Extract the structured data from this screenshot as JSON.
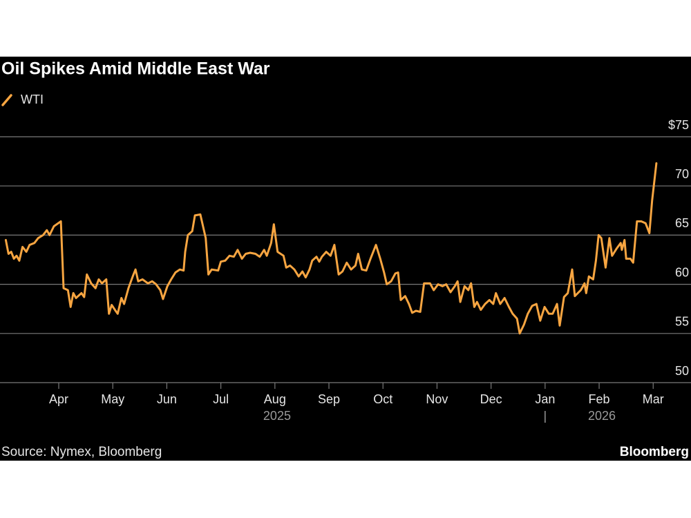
{
  "chart_data": {
    "type": "line",
    "title": "Oil Spikes Amid Middle East War",
    "source": "Source: Nymex, Bloomberg",
    "brand": "Bloomberg",
    "xlim": [
      2.913,
      15.7
    ],
    "ylim": [
      50,
      75
    ],
    "yticks": [
      50,
      55,
      60,
      65,
      70,
      {
        "value": 75,
        "label": "$75"
      }
    ],
    "xticks": [
      {
        "value": 4,
        "label": "Apr"
      },
      {
        "value": 5,
        "label": "May"
      },
      {
        "value": 6,
        "label": "Jun"
      },
      {
        "value": 7,
        "label": "Jul"
      },
      {
        "value": 8,
        "label": "Aug"
      },
      {
        "value": 9,
        "label": "Sep"
      },
      {
        "value": 10,
        "label": "Oct"
      },
      {
        "value": 11,
        "label": "Nov"
      },
      {
        "value": 12,
        "label": "Dec"
      },
      {
        "value": 13,
        "label": "Jan"
      },
      {
        "value": 14,
        "label": "Feb"
      },
      {
        "value": 15,
        "label": "Mar"
      }
    ],
    "year_labels": [
      {
        "value": 8.04,
        "label": "2025"
      },
      {
        "value": 14.05,
        "label": "2026"
      }
    ],
    "year_separator": 13,
    "grid": true,
    "x": [
      3.02,
      3.07,
      3.12,
      3.17,
      3.22,
      3.27,
      3.33,
      3.4,
      3.46,
      3.55,
      3.62,
      3.71,
      3.78,
      3.83,
      3.91,
      4.04,
      4.09,
      4.17,
      4.22,
      4.27,
      4.32,
      4.42,
      4.47,
      4.52,
      4.6,
      4.68,
      4.74,
      4.8,
      4.88,
      4.93,
      4.98,
      5.04,
      5.09,
      5.16,
      5.21,
      5.29,
      5.37,
      5.42,
      5.47,
      5.55,
      5.65,
      5.73,
      5.8,
      5.88,
      5.93,
      6.01,
      6.08,
      6.16,
      6.24,
      6.31,
      6.34,
      6.39,
      6.47,
      6.52,
      6.62,
      6.72,
      6.77,
      6.83,
      6.95,
      7.0,
      7.08,
      7.16,
      7.24,
      7.31,
      7.39,
      7.46,
      7.54,
      7.64,
      7.72,
      7.8,
      7.85,
      7.93,
      7.98,
      8.05,
      8.16,
      8.21,
      8.28,
      8.36,
      8.44,
      8.51,
      8.57,
      8.64,
      8.69,
      8.77,
      8.82,
      8.87,
      8.95,
      9.03,
      9.1,
      9.18,
      9.25,
      9.33,
      9.41,
      9.49,
      9.54,
      9.61,
      9.69,
      9.77,
      9.87,
      9.95,
      10.02,
      10.07,
      10.15,
      10.23,
      10.28,
      10.33,
      10.41,
      10.48,
      10.54,
      10.61,
      10.69,
      10.76,
      10.87,
      10.94,
      11.02,
      11.1,
      11.17,
      11.25,
      11.33,
      11.38,
      11.43,
      11.51,
      11.58,
      11.63,
      11.69,
      11.74,
      11.81,
      11.89,
      11.97,
      12.04,
      12.09,
      12.17,
      12.25,
      12.33,
      12.4,
      12.48,
      12.53,
      12.61,
      12.68,
      12.76,
      12.84,
      12.91,
      12.99,
      13.07,
      13.14,
      13.22,
      13.27,
      13.35,
      13.42,
      13.5,
      13.55,
      13.66,
      13.73,
      13.76,
      13.81,
      13.89,
      13.94,
      13.99,
      14.04,
      14.12,
      14.19,
      14.24,
      14.32,
      14.4,
      14.42,
      14.47,
      14.5,
      14.58,
      14.63,
      14.7,
      14.78,
      14.86,
      14.93,
      14.98,
      15.06
    ],
    "series": [
      {
        "name": "WTI",
        "color": "#f7a541",
        "values": [
          64.5,
          63.1,
          63.3,
          62.6,
          62.9,
          62.4,
          63.8,
          63.3,
          64.0,
          64.2,
          64.7,
          65.0,
          65.5,
          65.0,
          65.9,
          66.4,
          59.6,
          59.4,
          57.7,
          59.1,
          58.6,
          59.1,
          58.7,
          61.0,
          60.1,
          59.6,
          60.5,
          60.1,
          60.5,
          57.0,
          57.9,
          57.4,
          57.0,
          58.6,
          58.0,
          59.6,
          60.8,
          61.5,
          60.3,
          60.5,
          60.1,
          60.3,
          60.0,
          59.4,
          58.5,
          59.8,
          60.5,
          61.2,
          61.5,
          61.4,
          63.3,
          65.0,
          65.4,
          67.0,
          67.1,
          64.7,
          61.0,
          61.5,
          61.4,
          62.3,
          62.4,
          62.9,
          62.8,
          63.5,
          62.6,
          63.1,
          63.2,
          63.1,
          62.8,
          63.5,
          62.9,
          64.2,
          66.1,
          63.3,
          62.9,
          61.7,
          61.9,
          61.5,
          60.8,
          61.3,
          60.7,
          61.5,
          62.4,
          62.8,
          62.3,
          62.8,
          63.3,
          62.9,
          64.0,
          61.0,
          61.3,
          62.2,
          61.5,
          61.9,
          63.1,
          61.5,
          61.4,
          62.6,
          64.0,
          62.6,
          61.2,
          60.0,
          60.3,
          61.1,
          61.2,
          58.4,
          58.8,
          58.0,
          57.1,
          57.3,
          57.2,
          60.1,
          60.1,
          59.4,
          60.0,
          59.8,
          60.0,
          59.2,
          59.8,
          60.3,
          58.2,
          59.8,
          59.4,
          60.1,
          57.7,
          58.2,
          57.4,
          58.0,
          58.4,
          58.0,
          59.1,
          58.0,
          58.6,
          57.7,
          57.0,
          56.5,
          55.0,
          55.9,
          57.0,
          57.8,
          58.0,
          56.3,
          57.7,
          57.0,
          57.0,
          58.0,
          55.8,
          58.7,
          59.1,
          61.5,
          58.8,
          59.4,
          60.1,
          59.1,
          60.8,
          60.5,
          62.4,
          65.0,
          64.7,
          61.7,
          64.7,
          62.9,
          63.6,
          64.2,
          63.5,
          64.5,
          62.6,
          62.6,
          62.2,
          66.4,
          66.4,
          66.2,
          65.2,
          68.5,
          72.3
        ]
      }
    ]
  }
}
